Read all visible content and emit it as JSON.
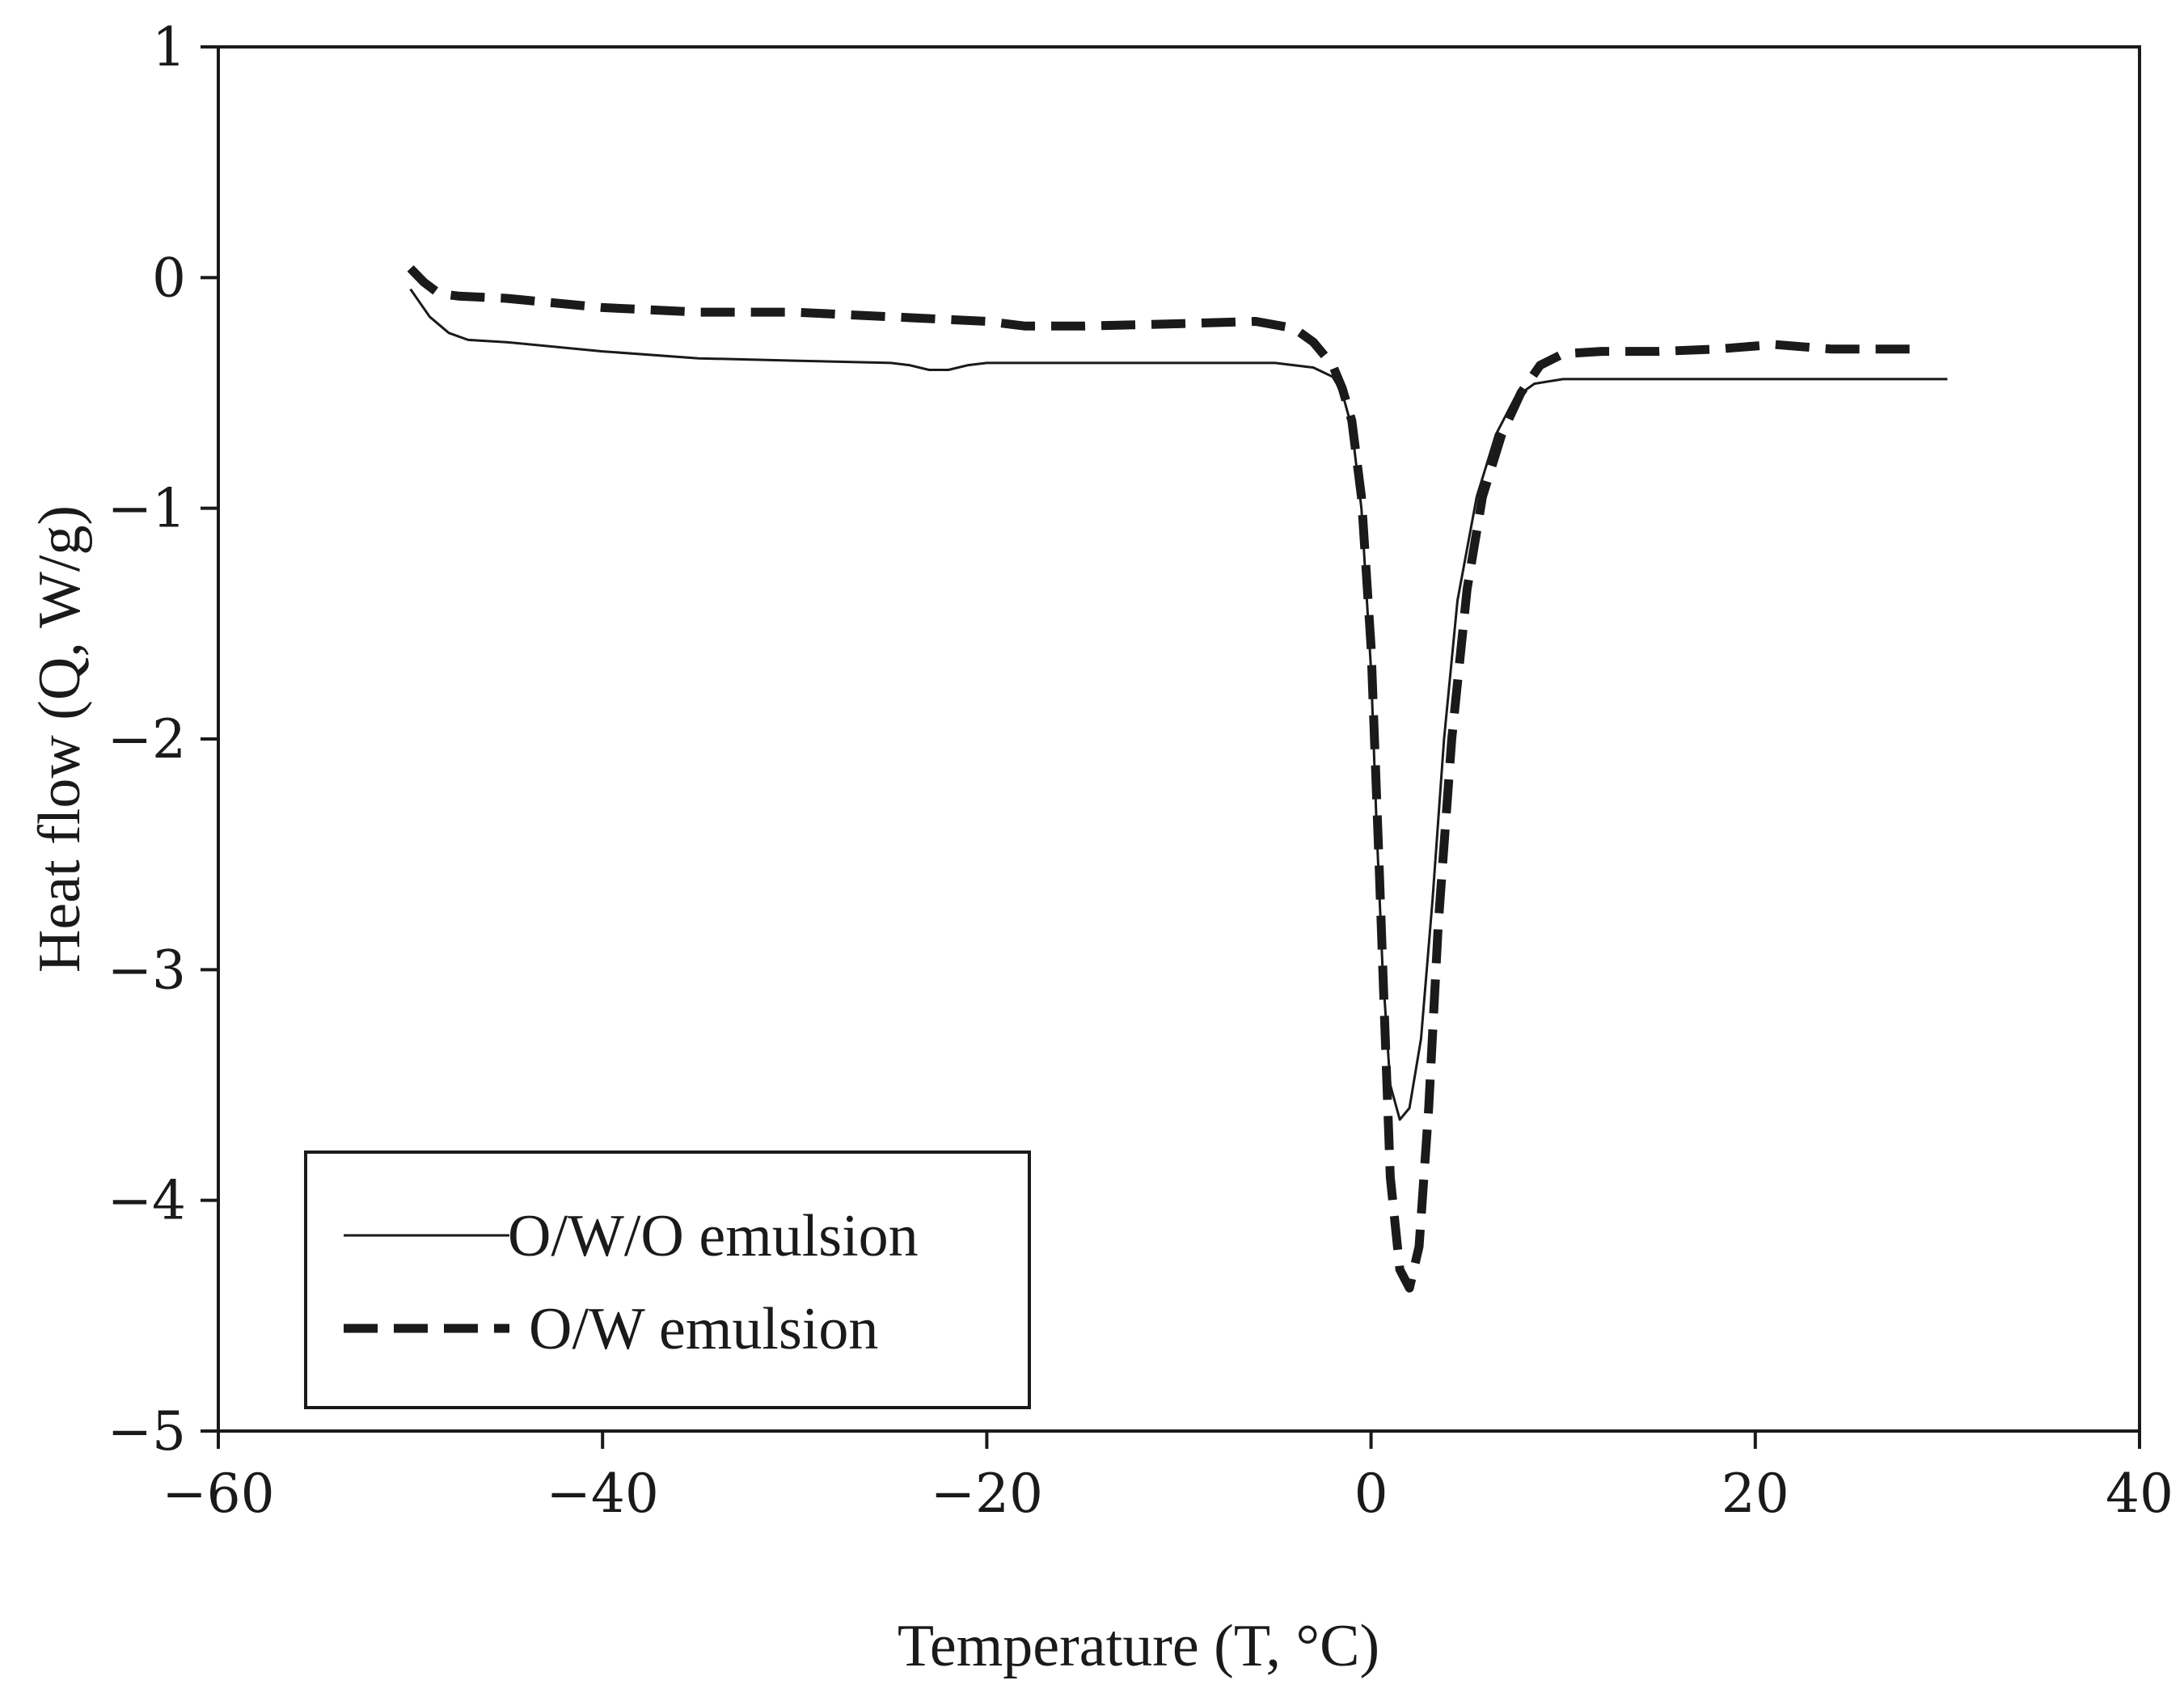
{
  "chart_data": {
    "type": "line",
    "title": "",
    "xlabel": "Temperature (T, °C)",
    "ylabel": "Heat flow (Q, W/g)",
    "xlim": [
      -60,
      40
    ],
    "ylim": [
      -5,
      1
    ],
    "xticks": [
      -60,
      -40,
      -20,
      0,
      20,
      40
    ],
    "yticks": [
      1,
      0,
      -1,
      -2,
      -3,
      -4,
      -5
    ],
    "xtick_labels": [
      "−60",
      "−40",
      "−20",
      "0",
      "20",
      "40"
    ],
    "ytick_labels": [
      "1",
      "0",
      "−1",
      "−2",
      "−3",
      "−4",
      "−5"
    ],
    "grid": false,
    "legend_position": "bottom-left",
    "series": [
      {
        "name": "O/W/O emulsion",
        "style": "solid",
        "color": "#1a1a1a",
        "points": [
          [
            -50,
            -0.05
          ],
          [
            -49,
            -0.17
          ],
          [
            -48,
            -0.24
          ],
          [
            -47,
            -0.27
          ],
          [
            -45,
            -0.28
          ],
          [
            -40,
            -0.32
          ],
          [
            -35,
            -0.35
          ],
          [
            -30,
            -0.36
          ],
          [
            -25,
            -0.37
          ],
          [
            -24,
            -0.38
          ],
          [
            -23,
            -0.4
          ],
          [
            -22,
            -0.4
          ],
          [
            -21,
            -0.38
          ],
          [
            -20,
            -0.37
          ],
          [
            -15,
            -0.37
          ],
          [
            -10,
            -0.37
          ],
          [
            -5,
            -0.37
          ],
          [
            -3,
            -0.39
          ],
          [
            -2,
            -0.43
          ],
          [
            -1.5,
            -0.5
          ],
          [
            -1,
            -0.65
          ],
          [
            -0.5,
            -1.0
          ],
          [
            0,
            -1.7
          ],
          [
            0.3,
            -2.4
          ],
          [
            0.6,
            -3.0
          ],
          [
            1.0,
            -3.5
          ],
          [
            1.5,
            -3.65
          ],
          [
            2.0,
            -3.6
          ],
          [
            2.6,
            -3.3
          ],
          [
            3.2,
            -2.7
          ],
          [
            3.8,
            -2.0
          ],
          [
            4.5,
            -1.4
          ],
          [
            5.5,
            -0.95
          ],
          [
            6.5,
            -0.68
          ],
          [
            7.5,
            -0.52
          ],
          [
            8.5,
            -0.46
          ],
          [
            10,
            -0.44
          ],
          [
            15,
            -0.44
          ],
          [
            20,
            -0.44
          ],
          [
            25,
            -0.44
          ],
          [
            30,
            -0.44
          ]
        ]
      },
      {
        "name": "O/W emulsion",
        "style": "dashed",
        "color": "#1a1a1a",
        "points": [
          [
            -50,
            0.04
          ],
          [
            -49.3,
            -0.02
          ],
          [
            -48.5,
            -0.07
          ],
          [
            -47.5,
            -0.08
          ],
          [
            -45,
            -0.09
          ],
          [
            -40,
            -0.13
          ],
          [
            -35,
            -0.15
          ],
          [
            -30,
            -0.15
          ],
          [
            -25,
            -0.17
          ],
          [
            -20,
            -0.19
          ],
          [
            -18,
            -0.21
          ],
          [
            -15,
            -0.21
          ],
          [
            -10,
            -0.2
          ],
          [
            -6,
            -0.19
          ],
          [
            -4,
            -0.22
          ],
          [
            -3,
            -0.28
          ],
          [
            -2,
            -0.38
          ],
          [
            -1.5,
            -0.48
          ],
          [
            -1,
            -0.62
          ],
          [
            -0.5,
            -0.95
          ],
          [
            0,
            -1.6
          ],
          [
            0.4,
            -2.5
          ],
          [
            0.7,
            -3.2
          ],
          [
            1.0,
            -3.9
          ],
          [
            1.5,
            -4.3
          ],
          [
            2.0,
            -4.38
          ],
          [
            2.5,
            -4.2
          ],
          [
            3.0,
            -3.6
          ],
          [
            3.5,
            -2.8
          ],
          [
            4.2,
            -2.0
          ],
          [
            5.0,
            -1.35
          ],
          [
            5.8,
            -0.95
          ],
          [
            6.8,
            -0.68
          ],
          [
            7.8,
            -0.5
          ],
          [
            8.8,
            -0.38
          ],
          [
            10,
            -0.33
          ],
          [
            12,
            -0.32
          ],
          [
            15,
            -0.32
          ],
          [
            18,
            -0.31
          ],
          [
            21,
            -0.29
          ],
          [
            24,
            -0.31
          ],
          [
            27,
            -0.31
          ],
          [
            28.5,
            -0.31
          ]
        ]
      }
    ]
  }
}
